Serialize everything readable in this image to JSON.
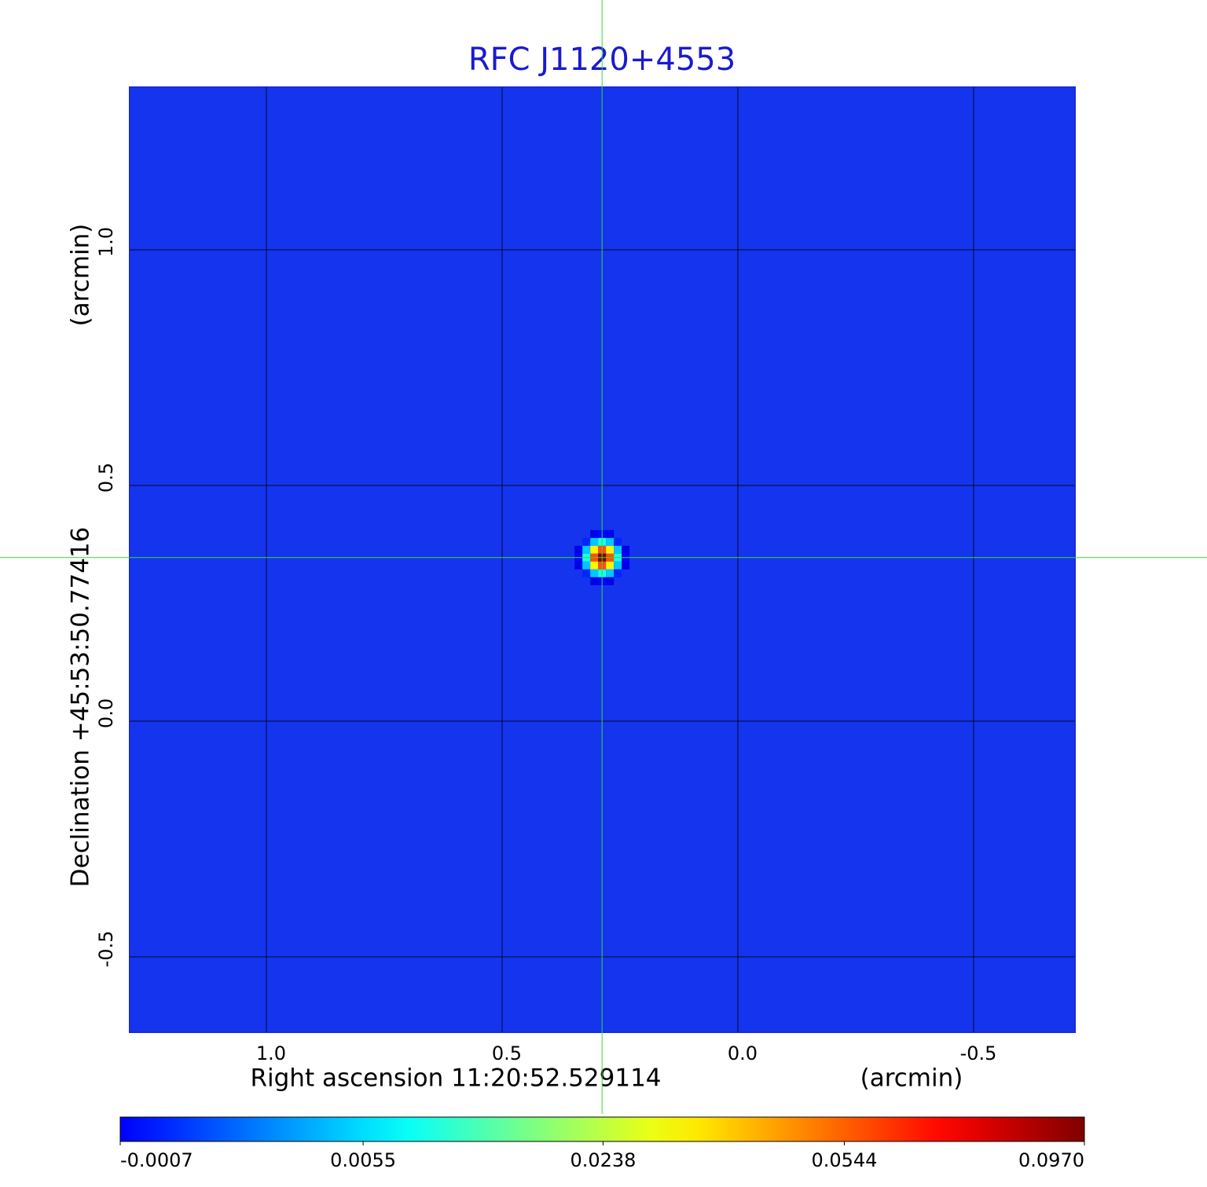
{
  "chart_data": {
    "type": "image",
    "title": "RFC J1120+4553",
    "xlabel": "Right ascension  11:20:52.529114",
    "xunit": "(arcmin)",
    "ylabel": "Declination  +45:53:50.77416",
    "yunit": "(arcmin)",
    "xlim": [
      1.29,
      -0.715
    ],
    "ylim": [
      -0.66,
      1.345
    ],
    "xticks": [
      {
        "value": 1,
        "label": "1.0"
      },
      0.5,
      {
        "value": 0,
        "label": "0.0"
      },
      -0.5
    ],
    "yticks": [
      {
        "value": -0.5,
        "label": "-0.5"
      },
      {
        "value": 0,
        "label": "0.0"
      },
      0.5,
      {
        "value": 1,
        "label": "1.0"
      }
    ],
    "grid": true,
    "source": {
      "x": 0.288,
      "y": 0.347,
      "peak": 0.097
    },
    "colormap": "jet",
    "cscale": "sqrt",
    "clim": [
      -0.0007,
      0.097
    ],
    "cticks": [
      {
        "value": -0.0007,
        "label": "-0.0007"
      },
      {
        "value": 0.0055,
        "label": "0.0055"
      },
      {
        "value": 0.0238,
        "label": "0.0238"
      },
      {
        "value": 0.0544,
        "label": "0.0544"
      },
      {
        "value": 0.097,
        "label": "0.0970"
      }
    ]
  }
}
